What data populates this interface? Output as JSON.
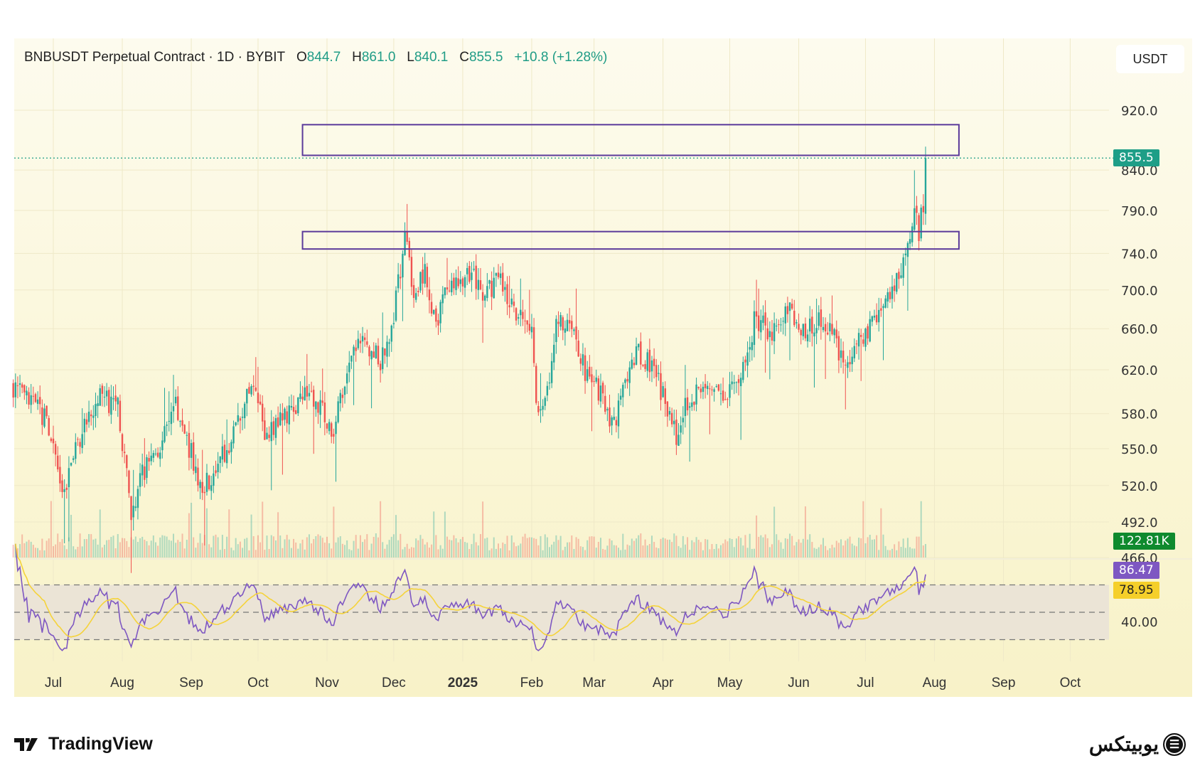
{
  "header": {
    "symbol": "BNBUSDT Perpetual Contract · 1D · BYBIT",
    "o_label": "O",
    "o": "844.7",
    "h_label": "H",
    "h": "861.0",
    "l_label": "L",
    "l": "840.1",
    "c_label": "C",
    "c": "855.5",
    "change": "+10.8 (+1.28%)"
  },
  "currency_button": "USDT",
  "badges": {
    "last_price": "855.5",
    "volume": "122.81K",
    "rsi": "86.47",
    "rsi_ma": "78.95"
  },
  "footer": {
    "tradingview": "TradingView",
    "brand": "یوبیتکس"
  },
  "colors": {
    "up": "#26a69a",
    "down": "#ef5350",
    "rsi": "#7e57c2",
    "rsi_ma": "#f5d33a",
    "zone": "#5b3a9a"
  },
  "chart_data": {
    "type": "candlestick",
    "title": "BNBUSDT Perpetual Contract · 1D · BYBIT",
    "y_scale": "log",
    "y_ticks": [
      "920.0",
      "840.0",
      "790.0",
      "740.0",
      "700.0",
      "660.0",
      "620.0",
      "580.0",
      "550.0",
      "520.0",
      "492.0",
      "466.0"
    ],
    "y_tick_values": [
      920,
      840,
      790,
      740,
      700,
      660,
      620,
      580,
      550,
      520,
      492,
      466
    ],
    "x_ticks": [
      {
        "label": "Jul",
        "date": "2024-07-01"
      },
      {
        "label": "Aug",
        "date": "2024-08-01"
      },
      {
        "label": "Sep",
        "date": "2024-09-01"
      },
      {
        "label": "Oct",
        "date": "2024-10-01"
      },
      {
        "label": "Nov",
        "date": "2024-11-01"
      },
      {
        "label": "Dec",
        "date": "2024-12-01"
      },
      {
        "label": "2025",
        "date": "2025-01-01",
        "bold": true
      },
      {
        "label": "Feb",
        "date": "2025-02-01"
      },
      {
        "label": "Mar",
        "date": "2025-03-01"
      },
      {
        "label": "Apr",
        "date": "2025-04-01"
      },
      {
        "label": "May",
        "date": "2025-05-01"
      },
      {
        "label": "Jun",
        "date": "2025-06-01"
      },
      {
        "label": "Jul",
        "date": "2025-07-01"
      },
      {
        "label": "Aug",
        "date": "2025-08-01"
      },
      {
        "label": "Sep",
        "date": "2025-09-01"
      },
      {
        "label": "Oct",
        "date": "2025-10-01"
      }
    ],
    "close_anchors": [
      [
        "2024-06-13",
        605
      ],
      [
        "2024-06-20",
        590
      ],
      [
        "2024-06-28",
        575
      ],
      [
        "2024-07-05",
        510
      ],
      [
        "2024-07-15",
        570
      ],
      [
        "2024-07-22",
        595
      ],
      [
        "2024-07-30",
        585
      ],
      [
        "2024-08-05",
        500
      ],
      [
        "2024-08-10",
        530
      ],
      [
        "2024-08-20",
        560
      ],
      [
        "2024-08-25",
        590
      ],
      [
        "2024-09-05",
        520
      ],
      [
        "2024-09-10",
        525
      ],
      [
        "2024-09-18",
        555
      ],
      [
        "2024-09-28",
        605
      ],
      [
        "2024-10-05",
        560
      ],
      [
        "2024-10-12",
        575
      ],
      [
        "2024-10-22",
        600
      ],
      [
        "2024-10-28",
        590
      ],
      [
        "2024-11-03",
        560
      ],
      [
        "2024-11-10",
        610
      ],
      [
        "2024-11-15",
        650
      ],
      [
        "2024-11-25",
        630
      ],
      [
        "2024-11-30",
        660
      ],
      [
        "2024-12-04",
        720
      ],
      [
        "2024-12-06",
        760
      ],
      [
        "2024-12-10",
        700
      ],
      [
        "2024-12-15",
        720
      ],
      [
        "2024-12-20",
        660
      ],
      [
        "2024-12-25",
        700
      ],
      [
        "2025-01-01",
        710
      ],
      [
        "2025-01-05",
        720
      ],
      [
        "2025-01-10",
        690
      ],
      [
        "2025-01-17",
        710
      ],
      [
        "2025-01-25",
        680
      ],
      [
        "2025-02-01",
        660
      ],
      [
        "2025-02-03",
        585
      ],
      [
        "2025-02-08",
        600
      ],
      [
        "2025-02-12",
        665
      ],
      [
        "2025-02-18",
        670
      ],
      [
        "2025-02-25",
        620
      ],
      [
        "2025-03-03",
        600
      ],
      [
        "2025-03-10",
        570
      ],
      [
        "2025-03-15",
        610
      ],
      [
        "2025-03-20",
        640
      ],
      [
        "2025-03-28",
        620
      ],
      [
        "2025-04-07",
        560
      ],
      [
        "2025-04-12",
        590
      ],
      [
        "2025-04-22",
        605
      ],
      [
        "2025-05-01",
        600
      ],
      [
        "2025-05-08",
        620
      ],
      [
        "2025-05-12",
        670
      ],
      [
        "2025-05-20",
        655
      ],
      [
        "2025-05-27",
        680
      ],
      [
        "2025-06-03",
        660
      ],
      [
        "2025-06-10",
        670
      ],
      [
        "2025-06-17",
        650
      ],
      [
        "2025-06-22",
        625
      ],
      [
        "2025-06-28",
        650
      ],
      [
        "2025-07-05",
        665
      ],
      [
        "2025-07-12",
        690
      ],
      [
        "2025-07-17",
        720
      ],
      [
        "2025-07-20",
        760
      ],
      [
        "2025-07-23",
        785
      ],
      [
        "2025-07-25",
        765
      ],
      [
        "2025-07-27",
        800
      ],
      [
        "2025-07-28",
        855.5
      ]
    ],
    "zones": [
      {
        "from_date": "2024-10-21",
        "to_date": "2025-08-12",
        "low": 859,
        "high": 900
      },
      {
        "from_date": "2024-10-21",
        "to_date": "2025-08-12",
        "low": 745,
        "high": 765
      }
    ],
    "last_price": 855.5,
    "rsi": {
      "levels": [
        70,
        50,
        30
      ],
      "tick": "40.00",
      "last": 86.47,
      "ma_last": 78.95,
      "period": 14
    }
  }
}
